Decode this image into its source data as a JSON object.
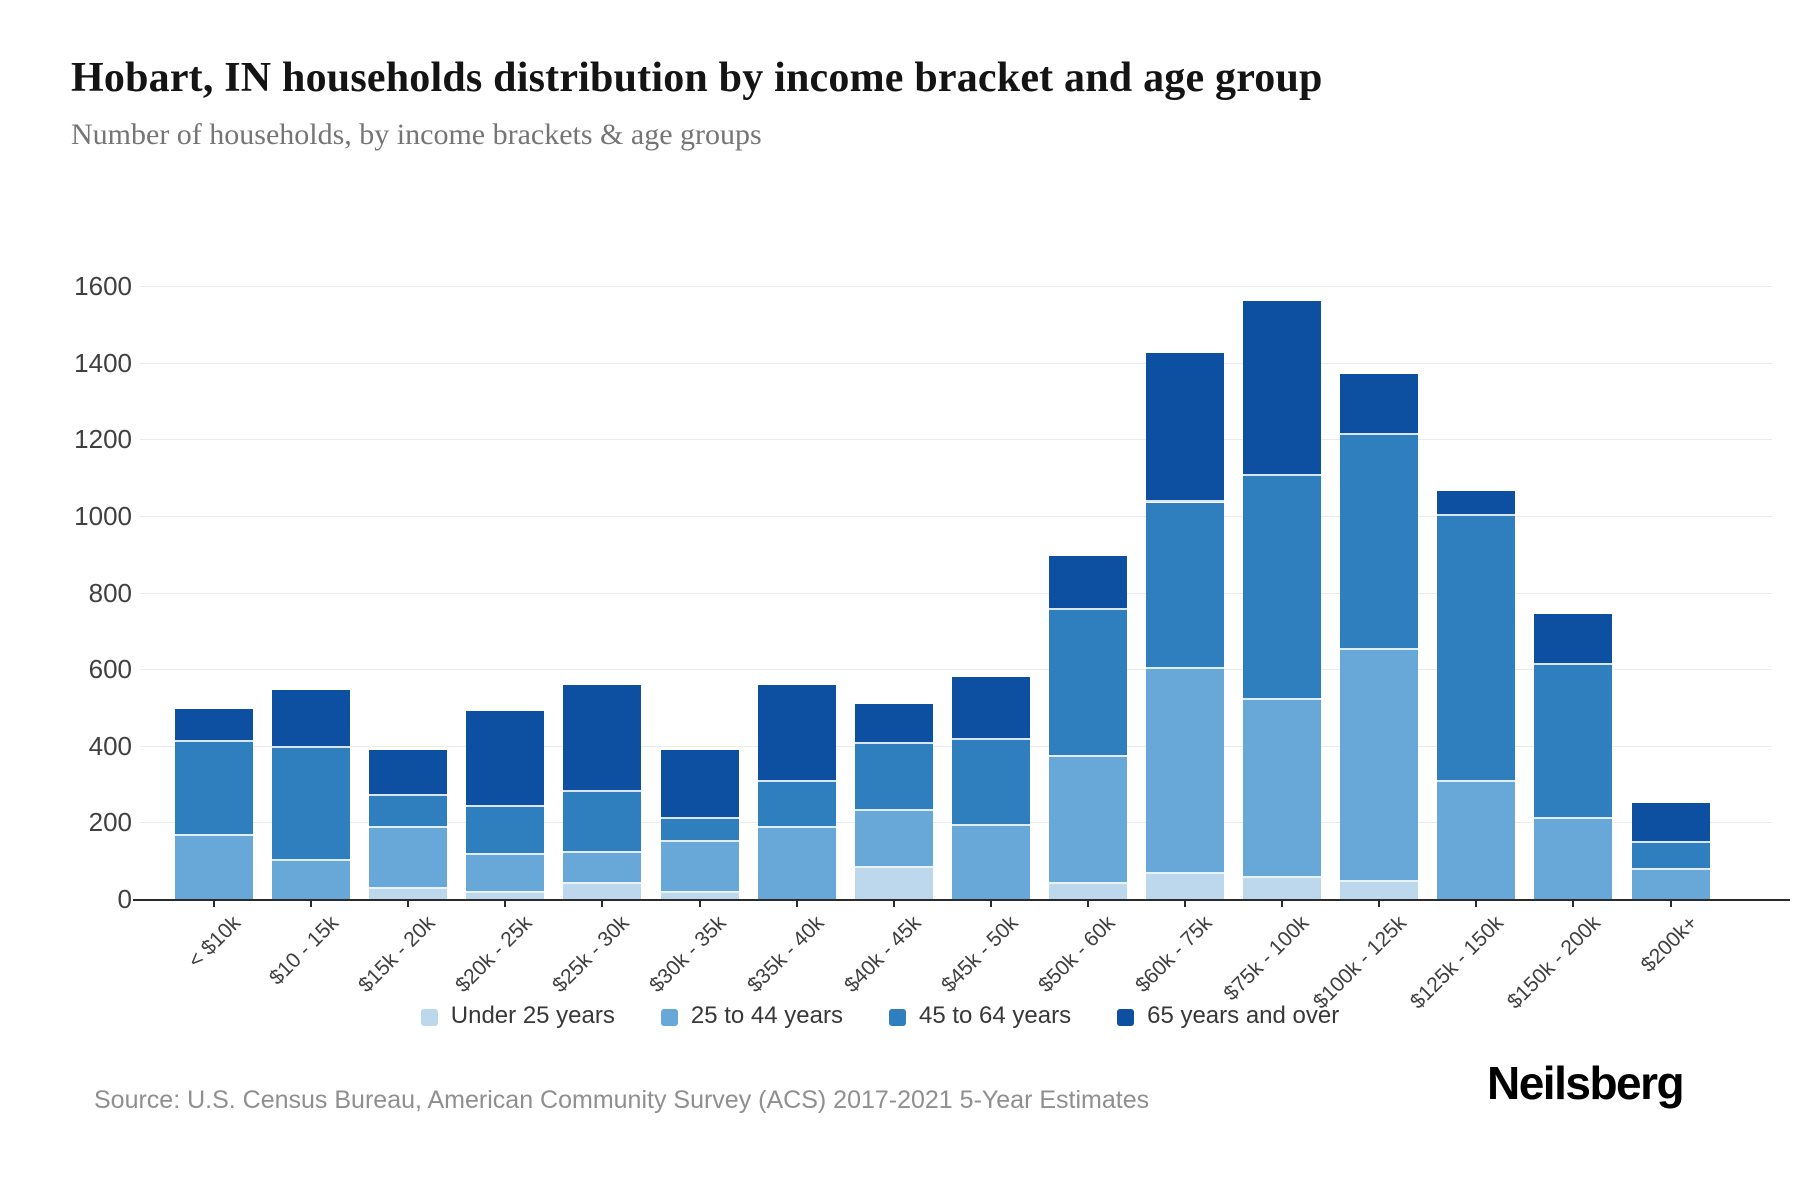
{
  "header": {
    "title": "Hobart, IN households distribution by income bracket and age group",
    "subtitle": "Number of households, by income brackets & age groups"
  },
  "chart_data": {
    "type": "bar",
    "stacked": true,
    "title": "Hobart, IN households distribution by income bracket and age group",
    "subtitle": "Number of households, by income brackets & age groups",
    "categories": [
      "< $10k",
      "$10 - 15k",
      "$15k - 20k",
      "$20k - 25k",
      "$25k - 30k",
      "$30k - 35k",
      "$35k - 40k",
      "$40k - 45k",
      "$45k - 50k",
      "$50k - 60k",
      "$60k - 75k",
      "$75k - 100k",
      "$100k - 125k",
      "$125k - 150k",
      "$150k - 200k",
      "$200k+"
    ],
    "series": [
      {
        "name": "Under 25 years",
        "color": "#bdd7ec",
        "values": [
          0,
          0,
          25,
          15,
          40,
          15,
          0,
          80,
          0,
          40,
          65,
          55,
          45,
          0,
          0,
          0
        ]
      },
      {
        "name": "25 to 44 years",
        "color": "#68a8d8",
        "values": [
          165,
          100,
          160,
          100,
          80,
          135,
          185,
          150,
          190,
          330,
          535,
          465,
          605,
          305,
          210,
          75
        ]
      },
      {
        "name": "45 to 64 years",
        "color": "#2f7fbf",
        "values": [
          245,
          295,
          85,
          125,
          160,
          60,
          120,
          175,
          225,
          385,
          435,
          585,
          560,
          695,
          400,
          70
        ]
      },
      {
        "name": "65 years and over",
        "color": "#0d4fa0",
        "values": [
          85,
          150,
          120,
          250,
          280,
          180,
          255,
          105,
          165,
          140,
          390,
          455,
          160,
          65,
          135,
          105
        ]
      }
    ],
    "totals": [
      495,
      545,
      390,
      490,
      560,
      390,
      560,
      510,
      580,
      895,
      1425,
      1560,
      1370,
      1065,
      745,
      250
    ],
    "ylim": [
      0,
      1600
    ],
    "y_ticks": [
      0,
      200,
      400,
      600,
      800,
      1000,
      1200,
      1400,
      1600
    ],
    "grid": "horizontal",
    "legend_position": "bottom",
    "axis_color": "#2b2b2b",
    "gridline_color": "#ebebeb"
  },
  "footer": {
    "source": "Source: U.S. Census Bureau, American Community Survey (ACS) 2017-2021 5-Year Estimates",
    "logo": "Neilsberg"
  }
}
